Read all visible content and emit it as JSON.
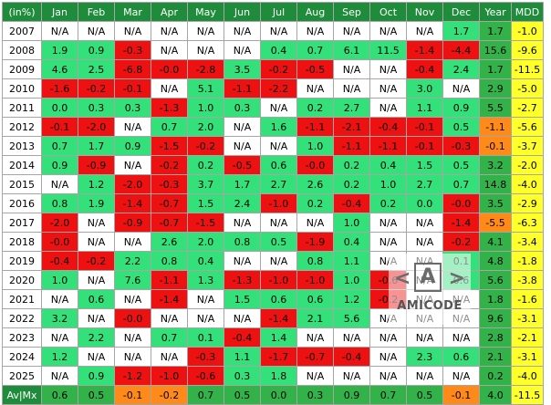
{
  "table": {
    "corner": "(in%)",
    "columns": [
      "Jan",
      "Feb",
      "Mar",
      "Apr",
      "May",
      "Jun",
      "Jul",
      "Aug",
      "Sep",
      "Oct",
      "Nov",
      "Dec",
      "Year",
      "MDD"
    ],
    "rows": [
      {
        "label": "2007",
        "cells": [
          "N/A",
          "N/A",
          "N/A",
          "N/A",
          "N/A",
          "N/A",
          "N/A",
          "N/A",
          "N/A",
          "N/A",
          "N/A",
          "1.7",
          "1.7",
          "-1.0"
        ]
      },
      {
        "label": "2008",
        "cells": [
          "1.9",
          "0.9",
          "-0.3",
          "N/A",
          "N/A",
          "N/A",
          "0.4",
          "0.7",
          "6.1",
          "11.5",
          "-1.4",
          "-4.4",
          "15.6",
          "-9.6"
        ]
      },
      {
        "label": "2009",
        "cells": [
          "4.6",
          "2.5",
          "-6.8",
          "-0.0",
          "-2.8",
          "3.5",
          "-0.2",
          "-0.5",
          "N/A",
          "N/A",
          "-0.4",
          "2.4",
          "1.7",
          "-11.5"
        ]
      },
      {
        "label": "2010",
        "cells": [
          "-1.6",
          "-0.2",
          "-0.1",
          "N/A",
          "5.1",
          "-1.1",
          "-2.2",
          "N/A",
          "N/A",
          "N/A",
          "3.0",
          "N/A",
          "2.9",
          "-5.0"
        ]
      },
      {
        "label": "2011",
        "cells": [
          "0.0",
          "0.3",
          "0.3",
          "-1.3",
          "1.0",
          "0.3",
          "N/A",
          "0.2",
          "2.7",
          "N/A",
          "1.1",
          "0.9",
          "5.5",
          "-2.7"
        ]
      },
      {
        "label": "2012",
        "cells": [
          "-0.1",
          "-2.0",
          "N/A",
          "0.7",
          "2.0",
          "N/A",
          "1.6",
          "-1.1",
          "-2.1",
          "-0.4",
          "-0.1",
          "0.5",
          "-1.1",
          "-5.6"
        ]
      },
      {
        "label": "2013",
        "cells": [
          "0.7",
          "1.7",
          "0.9",
          "-1.5",
          "-0.2",
          "N/A",
          "N/A",
          "1.0",
          "-1.1",
          "-1.1",
          "-0.1",
          "-0.3",
          "-0.1",
          "-3.7"
        ]
      },
      {
        "label": "2014",
        "cells": [
          "0.9",
          "-0.9",
          "N/A",
          "-0.2",
          "0.2",
          "-0.5",
          "0.6",
          "-0.0",
          "0.2",
          "0.4",
          "1.5",
          "0.5",
          "3.2",
          "-2.0"
        ]
      },
      {
        "label": "2015",
        "cells": [
          "N/A",
          "1.2",
          "-2.0",
          "-0.3",
          "3.7",
          "1.7",
          "2.7",
          "2.6",
          "0.2",
          "1.0",
          "2.7",
          "0.7",
          "14.8",
          "-4.0"
        ]
      },
      {
        "label": "2016",
        "cells": [
          "0.8",
          "1.9",
          "-1.4",
          "-0.7",
          "1.5",
          "2.4",
          "-1.0",
          "0.2",
          "-0.4",
          "0.2",
          "0.0",
          "-0.0",
          "3.5",
          "-2.9"
        ]
      },
      {
        "label": "2017",
        "cells": [
          "-2.0",
          "N/A",
          "-0.9",
          "-0.7",
          "-1.5",
          "N/A",
          "N/A",
          "N/A",
          "1.0",
          "N/A",
          "N/A",
          "-1.4",
          "-5.5",
          "-6.3"
        ]
      },
      {
        "label": "2018",
        "cells": [
          "-0.0",
          "N/A",
          "N/A",
          "2.6",
          "2.0",
          "0.8",
          "0.5",
          "-1.9",
          "0.4",
          "N/A",
          "N/A",
          "-0.2",
          "4.1",
          "-3.4"
        ]
      },
      {
        "label": "2019",
        "cells": [
          "-0.4",
          "-0.2",
          "2.2",
          "0.8",
          "0.4",
          "N/A",
          "N/A",
          "0.8",
          "1.1",
          "N/A",
          "N/A",
          "0.1",
          "4.8",
          "-1.8"
        ]
      },
      {
        "label": "2020",
        "cells": [
          "1.0",
          "N/A",
          "7.6",
          "-1.1",
          "1.3",
          "-1.3",
          "-1.0",
          "-1.0",
          "1.0",
          "-0.6",
          "N/A",
          "0.6",
          "5.6",
          "-3.8"
        ]
      },
      {
        "label": "2021",
        "cells": [
          "N/A",
          "0.6",
          "N/A",
          "-1.4",
          "N/A",
          "1.5",
          "0.6",
          "0.6",
          "1.2",
          "-0.2",
          "N/A",
          "N/A",
          "1.8",
          "-1.6"
        ]
      },
      {
        "label": "2022",
        "cells": [
          "3.2",
          "N/A",
          "-0.0",
          "N/A",
          "N/A",
          "N/A",
          "-1.4",
          "2.1",
          "5.6",
          "N/A",
          "N/A",
          "N/A",
          "9.6",
          "-3.1"
        ]
      },
      {
        "label": "2023",
        "cells": [
          "N/A",
          "2.2",
          "N/A",
          "0.7",
          "0.1",
          "-0.4",
          "1.4",
          "N/A",
          "N/A",
          "N/A",
          "N/A",
          "N/A",
          "2.8",
          "-2.1"
        ]
      },
      {
        "label": "2024",
        "cells": [
          "1.2",
          "N/A",
          "N/A",
          "N/A",
          "-0.3",
          "1.1",
          "-1.7",
          "-0.7",
          "-0.4",
          "N/A",
          "2.3",
          "0.6",
          "2.1",
          "-3.1"
        ]
      },
      {
        "label": "2025",
        "cells": [
          "N/A",
          "0.9",
          "-1.2",
          "-1.0",
          "-0.6",
          "0.3",
          "1.8",
          "N/A",
          "N/A",
          "N/A",
          "N/A",
          "N/A",
          "0.2",
          "-4.0"
        ]
      },
      {
        "label": "Av|Mx",
        "cells": [
          "0.6",
          "0.5",
          "-0.1",
          "-0.2",
          "0.7",
          "0.5",
          "0.0",
          "0.3",
          "0.9",
          "0.7",
          "0.5",
          "-0.1",
          "4.0",
          "-11.5"
        ]
      }
    ]
  },
  "watermark": {
    "text": "AMICODE",
    "glyph": "A"
  },
  "colors": {
    "header_green": "#1f8c3b",
    "cell_positive": "#33e07a",
    "cell_negative": "#ee1111",
    "year_positive": "#33b24a",
    "year_negative": "#ff8a1a",
    "mdd": "#ffff2a"
  }
}
